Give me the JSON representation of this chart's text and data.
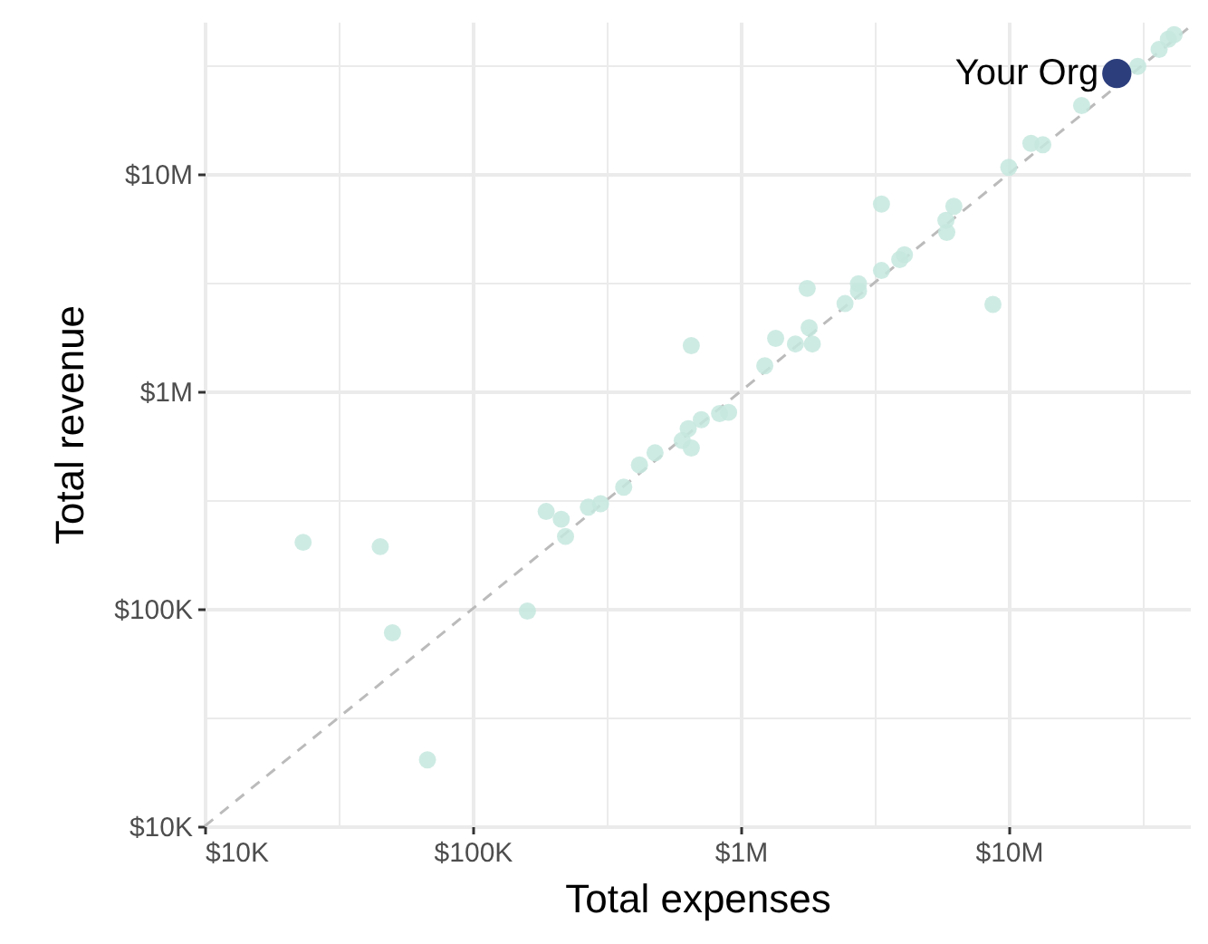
{
  "chart_data": {
    "type": "scatter",
    "xlabel": "Total expenses",
    "ylabel": "Total revenue",
    "log": "xy",
    "grid": true,
    "marker": "circle",
    "xlim": [
      10000,
      47400000
    ],
    "ylim": [
      10000,
      50000000
    ],
    "xticks": [
      {
        "value": 10000,
        "label": "$10K"
      },
      {
        "value": 31623,
        "label": null
      },
      {
        "value": 100000,
        "label": "$100K"
      },
      {
        "value": 316228,
        "label": null
      },
      {
        "value": 1000000,
        "label": "$1M"
      },
      {
        "value": 3162278,
        "label": null
      },
      {
        "value": 10000000,
        "label": "$10M"
      },
      {
        "value": 31622777,
        "label": null
      }
    ],
    "yticks": [
      {
        "value": 10000,
        "label": "$10K"
      },
      {
        "value": 31623,
        "label": null
      },
      {
        "value": 100000,
        "label": "$100K"
      },
      {
        "value": 316228,
        "label": null
      },
      {
        "value": 1000000,
        "label": "$1M"
      },
      {
        "value": 3162278,
        "label": null
      },
      {
        "value": 10000000,
        "label": "$10M"
      },
      {
        "value": 31622777,
        "label": null
      }
    ],
    "series": [
      {
        "type": "line",
        "color": "#bbbbbb",
        "line_style": "dashed",
        "marker": "none",
        "x": [
          10000,
          47400000
        ],
        "values": [
          10000,
          47400000
        ]
      },
      {
        "color": "#c5e8de",
        "x": [
          23300,
          45200,
          50200,
          67800,
          160000,
          188000,
          214000,
          222000,
          270000,
          300000,
          366000,
          419000,
          479000,
          605000,
          637000,
          654000,
          713000,
          834000,
          901000,
          654000,
          1230000,
          1350000,
          1600000,
          1850000,
          1800000,
          1770000,
          2450000,
          2750000,
          2750000,
          3350000,
          3350000,
          3920000,
          4080000,
          5830000,
          6240000,
          5870000,
          8730000,
          10000000,
          12100000,
          13400000,
          18700000,
          30300000,
          36400000,
          39400000,
          41400000
        ],
        "values": [
          202000,
          193000,
          77500,
          20200,
          97500,
          280000,
          258000,
          215000,
          293000,
          304000,
          362000,
          458000,
          521000,
          593000,
          673000,
          548000,
          740000,
          790000,
          800000,
          1620000,
          1310000,
          1750000,
          1650000,
          1650000,
          1960000,
          2970000,
          2530000,
          3120000,
          2890000,
          3590000,
          7260000,
          4030000,
          4240000,
          6110000,
          7080000,
          5380000,
          2510000,
          10700000,
          13800000,
          13600000,
          20600000,
          31200000,
          37300000,
          41600000,
          43600000
        ]
      },
      {
        "name": "Your Org",
        "color": "#2c3e7c",
        "x": [
          25300000
        ],
        "values": [
          28900000
        ]
      }
    ]
  }
}
